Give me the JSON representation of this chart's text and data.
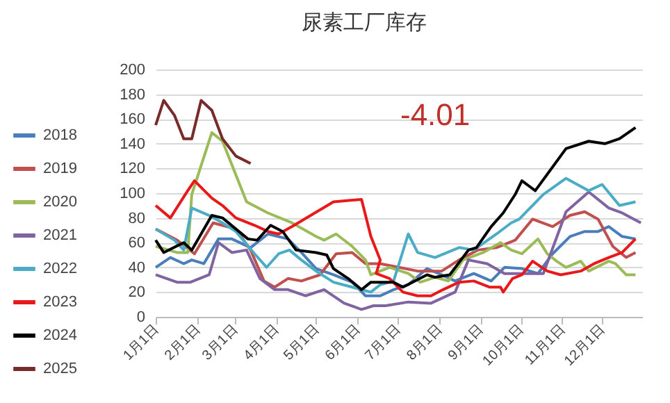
{
  "chart_data": {
    "type": "line",
    "title": "尿素工厂库存",
    "annotations": [
      "-4.01"
    ],
    "ylim": [
      0,
      200
    ],
    "yticks": [
      0,
      20,
      40,
      60,
      80,
      100,
      120,
      140,
      160,
      180,
      200
    ],
    "xlim": [
      "--01-01",
      "--12-31"
    ],
    "xticks": [
      {
        "value": "--01-01",
        "label": "1月1日"
      },
      {
        "value": "--02-01",
        "label": "2月1日"
      },
      {
        "value": "--03-01",
        "label": "3月1日"
      },
      {
        "value": "--04-01",
        "label": "4月1日"
      },
      {
        "value": "--05-01",
        "label": "5月1日"
      },
      {
        "value": "--06-01",
        "label": "6月1日"
      },
      {
        "value": "--07-01",
        "label": "7月1日"
      },
      {
        "value": "--08-01",
        "label": "8月1日"
      },
      {
        "value": "--09-01",
        "label": "9月1日"
      },
      {
        "value": "--10-01",
        "label": "10月1日"
      },
      {
        "value": "--11-01",
        "label": "11月1日"
      },
      {
        "value": "--12-01",
        "label": "12月1日"
      }
    ],
    "grid": "y",
    "legend": "left",
    "marker": "none",
    "line_style": "solid",
    "series": [
      {
        "name": "2018",
        "color": "#4a7ebb",
        "x": [
          "--01-01",
          "--01-12",
          "--01-22",
          "--01-28",
          "--02-06",
          "--02-17",
          "--02-27",
          "--03-13",
          "--03-26",
          "--04-10",
          "--04-20",
          "--05-01",
          "--05-14",
          "--05-28",
          "--06-07",
          "--06-18",
          "--06-28",
          "--07-09",
          "--07-23",
          "--08-03",
          "--08-13",
          "--08-27",
          "--09-09",
          "--09-19",
          "--10-02",
          "--10-14",
          "--10-25",
          "--11-07",
          "--11-18",
          "--11-28",
          "--12-06",
          "--12-16",
          "--12-26"
        ],
        "values": [
          40,
          48,
          43,
          46,
          43,
          63,
          63,
          56,
          67,
          63,
          52,
          39,
          34,
          28,
          17,
          17,
          22,
          26,
          39,
          34,
          29,
          35,
          29,
          40,
          39,
          35,
          51,
          65,
          69,
          69,
          73,
          65,
          63
        ]
      },
      {
        "name": "2019",
        "color": "#c0504d",
        "x": [
          "--01-01",
          "--01-17",
          "--01-30",
          "--02-13",
          "--03-02",
          "--03-13",
          "--03-23",
          "--03-31",
          "--04-10",
          "--04-20",
          "--05-04",
          "--05-16",
          "--05-28",
          "--06-07",
          "--06-18",
          "--07-02",
          "--07-16",
          "--08-03",
          "--08-16",
          "--08-30",
          "--09-13",
          "--09-27",
          "--10-10",
          "--10-25",
          "--11-07",
          "--11-18",
          "--11-28",
          "--12-09",
          "--12-19",
          "--12-26"
        ],
        "values": [
          71,
          62,
          51,
          76,
          71,
          54,
          29,
          24,
          31,
          29,
          34,
          51,
          52,
          43,
          43,
          40,
          37,
          37,
          46,
          54,
          56,
          62,
          79,
          73,
          82,
          85,
          79,
          57,
          48,
          52
        ]
      },
      {
        "name": "2020",
        "color": "#9bbb59",
        "x": [
          "--01-01",
          "--01-17",
          "--01-25",
          "--01-28",
          "--02-12",
          "--02-20",
          "--03-10",
          "--03-26",
          "--04-13",
          "--05-01",
          "--05-07",
          "--05-16",
          "--05-28",
          "--06-07",
          "--06-11",
          "--06-25",
          "--07-09",
          "--07-18",
          "--07-29",
          "--08-08",
          "--08-19",
          "--09-03",
          "--09-16",
          "--09-24",
          "--10-02",
          "--10-14",
          "--10-21",
          "--10-28",
          "--11-04",
          "--11-15",
          "--11-21",
          "--12-06",
          "--12-11",
          "--12-19",
          "--12-26"
        ],
        "values": [
          57,
          52,
          52,
          99,
          149,
          142,
          93,
          84,
          76,
          65,
          62,
          67,
          57,
          46,
          34,
          40,
          35,
          28,
          32,
          29,
          46,
          52,
          60,
          54,
          51,
          63,
          51,
          45,
          40,
          45,
          37,
          45,
          43,
          34,
          34
        ]
      },
      {
        "name": "2021",
        "color": "#8064a2",
        "x": [
          "--01-01",
          "--01-17",
          "--01-27",
          "--02-10",
          "--02-17",
          "--02-27",
          "--03-10",
          "--03-20",
          "--03-31",
          "--04-10",
          "--04-23",
          "--05-07",
          "--05-22",
          "--06-04",
          "--06-13",
          "--06-22",
          "--07-09",
          "--07-26",
          "--08-13",
          "--08-23",
          "--09-06",
          "--09-19",
          "--10-04",
          "--10-18",
          "--10-31",
          "--11-04",
          "--11-21",
          "--12-06",
          "--12-16",
          "--12-30"
        ],
        "values": [
          34,
          28,
          28,
          34,
          60,
          52,
          54,
          31,
          22,
          22,
          17,
          22,
          11,
          6,
          9,
          9,
          12,
          11,
          20,
          46,
          43,
          35,
          35,
          35,
          73,
          85,
          101,
          88,
          84,
          76
        ]
      },
      {
        "name": "2022",
        "color": "#4bacc6",
        "x": [
          "--01-01",
          "--01-15",
          "--01-22",
          "--01-28",
          "--02-10",
          "--02-20",
          "--03-02",
          "--03-16",
          "--03-25",
          "--04-03",
          "--04-11",
          "--04-20",
          "--05-01",
          "--05-14",
          "--05-28",
          "--06-11",
          "--06-18",
          "--06-28",
          "--07-09",
          "--07-16",
          "--07-29",
          "--08-16",
          "--08-27",
          "--09-13",
          "--09-24",
          "--09-30",
          "--10-18",
          "--11-04",
          "--11-21",
          "--12-01",
          "--12-14",
          "--12-26"
        ],
        "values": [
          71,
          62,
          54,
          88,
          82,
          76,
          69,
          51,
          40,
          51,
          54,
          46,
          37,
          28,
          24,
          20,
          26,
          29,
          67,
          52,
          48,
          56,
          54,
          67,
          76,
          79,
          99,
          112,
          102,
          107,
          90,
          93
        ]
      },
      {
        "name": "2023",
        "color": "#e8191b",
        "x": [
          "--01-01",
          "--01-12",
          "--01-22",
          "--01-25",
          "--01-30",
          "--02-12",
          "--02-20",
          "--03-02",
          "--03-16",
          "--03-26",
          "--04-03",
          "--04-13",
          "--05-14",
          "--06-04",
          "--06-11",
          "--06-18",
          "--06-15",
          "--06-25",
          "--07-05",
          "--07-16",
          "--07-26",
          "--08-04",
          "--08-16",
          "--08-27",
          "--09-08",
          "--09-16",
          "--09-18",
          "--09-25",
          "--10-02",
          "--10-10",
          "--10-21",
          "--10-31",
          "--11-15",
          "--11-25",
          "--12-06",
          "--12-16",
          "--12-26"
        ],
        "values": [
          90,
          80,
          97,
          102,
          110,
          96,
          90,
          80,
          74,
          69,
          67,
          73,
          93,
          95,
          65,
          46,
          35,
          31,
          20,
          17,
          17,
          22,
          28,
          29,
          24,
          24,
          20,
          31,
          34,
          45,
          37,
          34,
          37,
          43,
          48,
          52,
          63
        ]
      },
      {
        "name": "2024",
        "color": "#000000",
        "x": [
          "--01-01",
          "--01-07",
          "--01-22",
          "--01-28",
          "--02-12",
          "--02-20",
          "--03-11",
          "--03-18",
          "--03-28",
          "--04-06",
          "--04-16",
          "--05-01",
          "--05-09",
          "--05-14",
          "--05-25",
          "--06-04",
          "--06-11",
          "--06-28",
          "--07-05",
          "--07-23",
          "--07-29",
          "--08-09",
          "--08-23",
          "--08-29",
          "--09-09",
          "--09-18",
          "--09-27",
          "--10-02",
          "--10-12",
          "--11-04",
          "--11-21",
          "--12-03",
          "--12-14",
          "--12-26"
        ],
        "values": [
          62,
          52,
          60,
          54,
          82,
          80,
          63,
          62,
          74,
          69,
          54,
          52,
          50,
          39,
          31,
          22,
          28,
          28,
          24,
          34,
          32,
          34,
          54,
          56,
          73,
          84,
          99,
          110,
          102,
          136,
          142,
          140,
          144,
          153
        ]
      },
      {
        "name": "2025",
        "color": "#772c2a",
        "x": [
          "--01-01",
          "--01-07",
          "--01-15",
          "--01-22",
          "--01-28",
          "--02-04",
          "--02-12",
          "--02-20",
          "--03-02",
          "--03-13"
        ],
        "values": [
          155,
          175,
          163,
          144,
          144,
          175,
          167,
          144,
          130,
          124
        ]
      }
    ]
  }
}
